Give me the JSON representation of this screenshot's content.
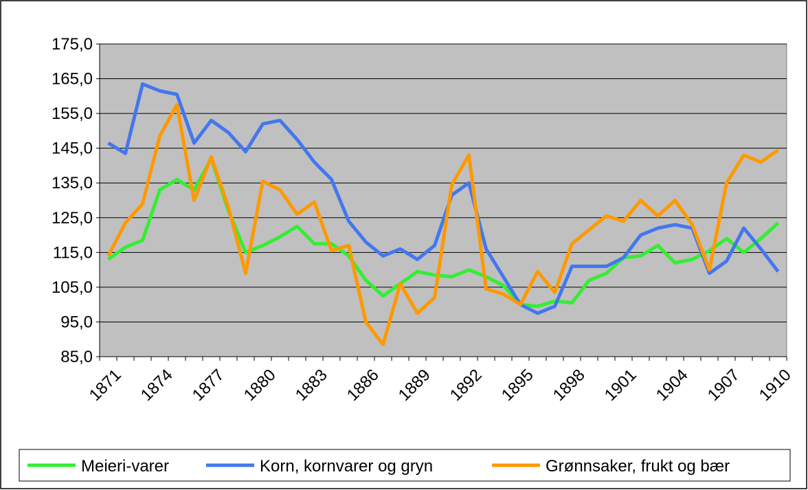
{
  "chart_data": {
    "type": "line",
    "categories": [
      "1871",
      null,
      null,
      "1874",
      null,
      null,
      "1877",
      null,
      null,
      "1880",
      null,
      null,
      "1883",
      null,
      null,
      "1886",
      null,
      null,
      "1889",
      null,
      null,
      "1892",
      null,
      null,
      "1895",
      null,
      null,
      "1898",
      null,
      null,
      "1901",
      null,
      null,
      "1904",
      null,
      null,
      "1907",
      null,
      null,
      "1910"
    ],
    "series": [
      {
        "name": "Meieri-varer",
        "color": "#33ee33",
        "values": [
          113,
          116.5,
          118.5,
          133,
          136,
          133,
          142,
          127,
          115,
          117,
          119.5,
          122.5,
          117.5,
          117.5,
          114,
          107,
          102.5,
          106,
          109.5,
          108.5,
          108,
          110,
          108,
          105.5,
          100,
          99.5,
          101,
          100.5,
          107,
          109,
          113.5,
          114,
          117,
          112,
          113,
          115.5,
          119,
          115,
          119,
          123.5
        ]
      },
      {
        "name": "Korn, kornvarer og gryn",
        "color": "#4477ee",
        "values": [
          146.5,
          143.5,
          163.5,
          161.5,
          160.5,
          146.5,
          153,
          149.5,
          144,
          152,
          153,
          147.5,
          141,
          136,
          124,
          118,
          114,
          116,
          113,
          117,
          131.5,
          135,
          116,
          108,
          100,
          97.5,
          99.5,
          111,
          111,
          111,
          113.5,
          120,
          122,
          123,
          122,
          109,
          112.5,
          122,
          116,
          109.5
        ]
      },
      {
        "name": "Grønnsaker, frukt og bær",
        "color": "#ff9900",
        "values": [
          114,
          123.5,
          129,
          148.5,
          157.5,
          130,
          142.5,
          128,
          109,
          135.5,
          133,
          126,
          129.5,
          115.5,
          117,
          95,
          88.5,
          106,
          97.5,
          102,
          134.5,
          143,
          104.5,
          103,
          100,
          109.5,
          103.5,
          117.5,
          121.5,
          125.5,
          124,
          130,
          125.5,
          130,
          123,
          110,
          135,
          143,
          141,
          144.5
        ]
      }
    ],
    "ylim": [
      85,
      175
    ],
    "yticks": [
      {
        "value": 85,
        "label": "85,0"
      },
      {
        "value": 95,
        "label": "95,0"
      },
      {
        "value": 105,
        "label": "105,0"
      },
      {
        "value": 115,
        "label": "115,0"
      },
      {
        "value": 125,
        "label": "125,0"
      },
      {
        "value": 135,
        "label": "135,0"
      },
      {
        "value": 145,
        "label": "145,0"
      },
      {
        "value": 155,
        "label": "155,0"
      },
      {
        "value": 165,
        "label": "165,0"
      },
      {
        "value": 175,
        "label": "175,0"
      }
    ],
    "grid": true
  }
}
